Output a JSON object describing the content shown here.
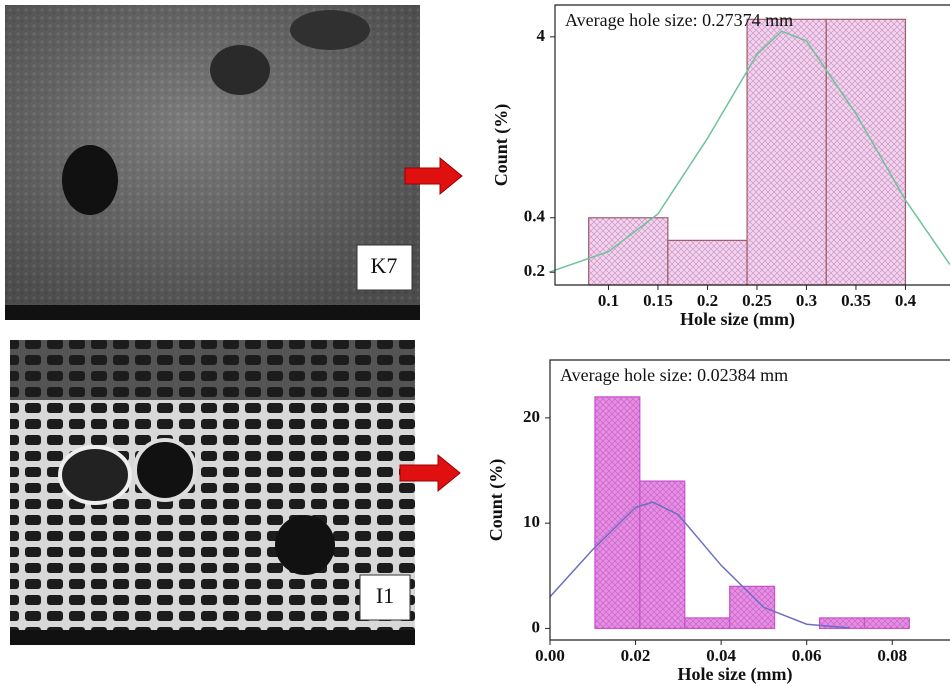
{
  "images": [
    {
      "label": "K7"
    },
    {
      "label": "I1"
    }
  ],
  "chart_data": [
    {
      "type": "histogram",
      "annotation": "Average hole size: 0.27374 mm",
      "xlabel": "Hole size (mm)",
      "ylabel": "Count (%)",
      "bins": [
        0.08,
        0.16,
        0.24,
        0.32,
        0.4
      ],
      "values": [
        0.4,
        0.3,
        5,
        5
      ],
      "color": "#f3d3ef",
      "edge_color": "#a0606a",
      "hatch": true,
      "curve": {
        "color": "#6fc29a",
        "x": [
          0.04,
          0.1,
          0.15,
          0.2,
          0.25,
          0.275,
          0.3,
          0.35,
          0.4,
          0.445
        ],
        "values": [
          0.2,
          0.26,
          0.42,
          1.1,
          3.2,
          4.3,
          3.8,
          1.5,
          0.5,
          0.22
        ]
      },
      "log_y": true,
      "xlim": [
        0.046,
        0.445
      ],
      "ylim": [
        0.17,
        6
      ],
      "xticks": [
        0.1,
        0.15,
        0.2,
        0.25,
        0.3,
        0.35,
        0.4
      ],
      "yticks": [
        0.2,
        0.4,
        4
      ]
    },
    {
      "type": "histogram",
      "annotation": "Average hole size: 0.02384 mm",
      "xlabel": "Hole size (mm)",
      "ylabel": "Count (%)",
      "bins": [
        0.0105,
        0.021,
        0.0315,
        0.042,
        0.0525,
        0.063,
        0.0735,
        0.084
      ],
      "values": [
        22,
        14,
        1,
        4,
        0,
        1,
        1
      ],
      "color": "#e98ce8",
      "edge_color": "#cc55d0",
      "hatch": true,
      "curve": {
        "color": "#6a6fc4",
        "x": [
          0,
          0.01,
          0.02,
          0.024,
          0.03,
          0.04,
          0.05,
          0.06,
          0.07
        ],
        "values": [
          3,
          7.5,
          11.5,
          12,
          10.8,
          6,
          2,
          0.4,
          0.05
        ]
      },
      "log_y": false,
      "xlim": [
        0,
        0.0935
      ],
      "ylim": [
        -1.1,
        25.5
      ],
      "xticks": [
        {
          "value": 0,
          "label": "0.00"
        },
        {
          "value": 0.02,
          "label": "0.02"
        },
        {
          "value": 0.04,
          "label": "0.04"
        },
        {
          "value": 0.06,
          "label": "0.06"
        },
        {
          "value": 0.08,
          "label": "0.08"
        }
      ],
      "yticks": [
        0,
        10,
        20
      ]
    }
  ]
}
